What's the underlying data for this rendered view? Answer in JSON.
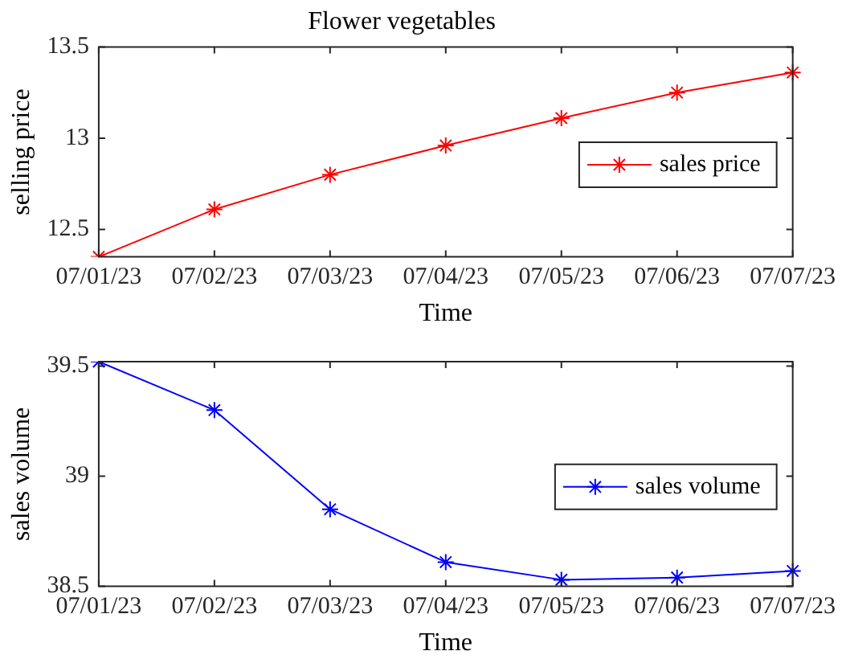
{
  "chart_data": [
    {
      "type": "line",
      "title": "Flower vegetables",
      "xlabel": "Time",
      "ylabel": "selling price",
      "categories": [
        "07/01/23",
        "07/02/23",
        "07/03/23",
        "07/04/23",
        "07/05/23",
        "07/06/23",
        "07/07/23"
      ],
      "series": [
        {
          "name": "sales price",
          "color": "#ff0000",
          "values": [
            12.35,
            12.61,
            12.8,
            12.96,
            13.11,
            13.25,
            13.36
          ]
        }
      ],
      "ylim": [
        12.35,
        13.5
      ],
      "yticks": [
        12.5,
        13,
        13.5
      ],
      "grid": false,
      "legend": "right",
      "marker": "cross",
      "line_style": "solid"
    },
    {
      "type": "line",
      "xlabel": "Time",
      "ylabel": "sales volume",
      "categories": [
        "07/01/23",
        "07/02/23",
        "07/03/23",
        "07/04/23",
        "07/05/23",
        "07/06/23",
        "07/07/23"
      ],
      "series": [
        {
          "name": "sales volume",
          "color": "#0000ff",
          "values": [
            39.52,
            39.3,
            38.85,
            38.61,
            38.53,
            38.54,
            38.57
          ]
        }
      ],
      "ylim": [
        38.5,
        39.52
      ],
      "yticks": [
        38.5,
        39,
        39.5
      ],
      "grid": false,
      "legend": "right",
      "marker": "cross",
      "line_style": "solid"
    }
  ]
}
